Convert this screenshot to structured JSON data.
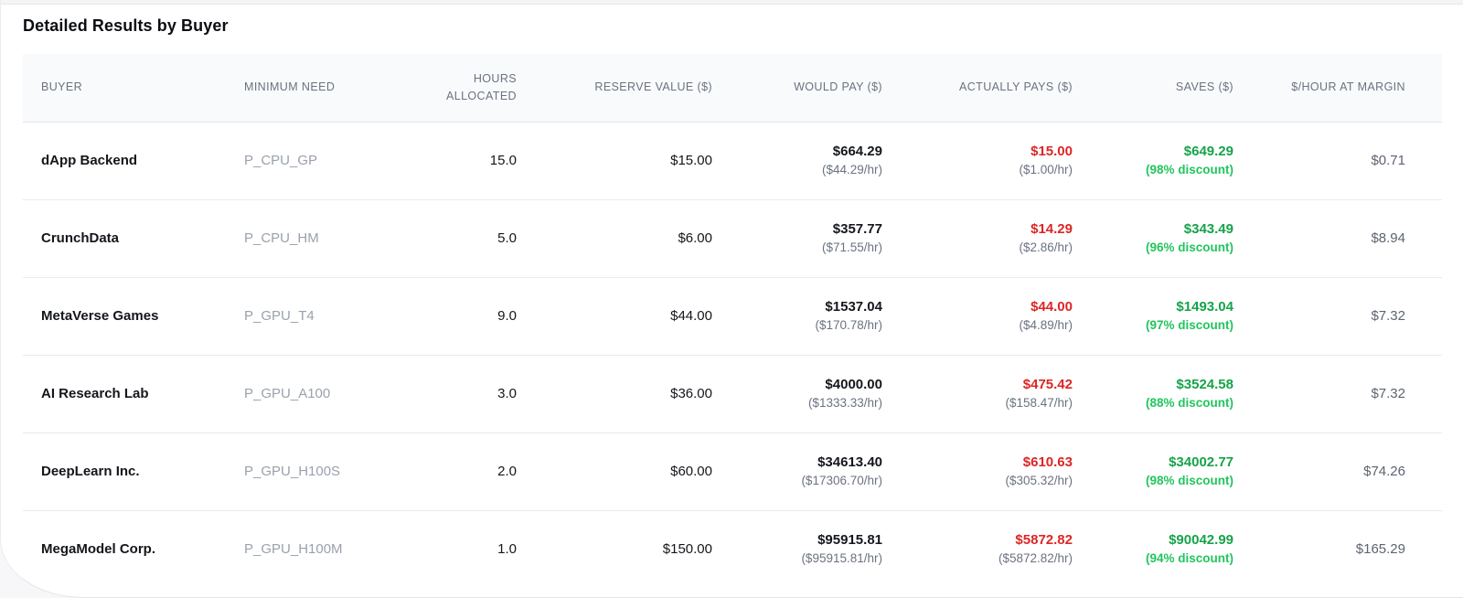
{
  "page": {
    "title": "Detailed Results by Buyer"
  },
  "colors": {
    "red": "#dc2626",
    "green": "#16a34a",
    "green_bright": "#22c55e"
  },
  "table": {
    "columns": [
      {
        "label": "BUYER"
      },
      {
        "label": "MINIMUM NEED"
      },
      {
        "label": "HOURS ALLOCATED"
      },
      {
        "label": "RESERVE VALUE ($)"
      },
      {
        "label": "WOULD PAY ($)"
      },
      {
        "label": "ACTUALLY PAYS ($)"
      },
      {
        "label": "SAVES ($)"
      },
      {
        "label": "$/HOUR AT MARGIN"
      }
    ],
    "rows": [
      {
        "buyer": "dApp Backend",
        "minimum_need": "P_CPU_GP",
        "hours_allocated": "15.0",
        "reserve_value": "$15.00",
        "would_pay": {
          "main": "$664.29",
          "sub": "($44.29/hr)"
        },
        "actually_pays": {
          "main": "$15.00",
          "sub": "($1.00/hr)"
        },
        "saves": {
          "main": "$649.29",
          "sub": "(98% discount)"
        },
        "margin": "$0.71"
      },
      {
        "buyer": "CrunchData",
        "minimum_need": "P_CPU_HM",
        "hours_allocated": "5.0",
        "reserve_value": "$6.00",
        "would_pay": {
          "main": "$357.77",
          "sub": "($71.55/hr)"
        },
        "actually_pays": {
          "main": "$14.29",
          "sub": "($2.86/hr)"
        },
        "saves": {
          "main": "$343.49",
          "sub": "(96% discount)"
        },
        "margin": "$8.94"
      },
      {
        "buyer": "MetaVerse Games",
        "minimum_need": "P_GPU_T4",
        "hours_allocated": "9.0",
        "reserve_value": "$44.00",
        "would_pay": {
          "main": "$1537.04",
          "sub": "($170.78/hr)"
        },
        "actually_pays": {
          "main": "$44.00",
          "sub": "($4.89/hr)"
        },
        "saves": {
          "main": "$1493.04",
          "sub": "(97% discount)"
        },
        "margin": "$7.32"
      },
      {
        "buyer": "AI Research Lab",
        "minimum_need": "P_GPU_A100",
        "hours_allocated": "3.0",
        "reserve_value": "$36.00",
        "would_pay": {
          "main": "$4000.00",
          "sub": "($1333.33/hr)"
        },
        "actually_pays": {
          "main": "$475.42",
          "sub": "($158.47/hr)"
        },
        "saves": {
          "main": "$3524.58",
          "sub": "(88% discount)"
        },
        "margin": "$7.32"
      },
      {
        "buyer": "DeepLearn Inc.",
        "minimum_need": "P_GPU_H100S",
        "hours_allocated": "2.0",
        "reserve_value": "$60.00",
        "would_pay": {
          "main": "$34613.40",
          "sub": "($17306.70/hr)"
        },
        "actually_pays": {
          "main": "$610.63",
          "sub": "($305.32/hr)"
        },
        "saves": {
          "main": "$34002.77",
          "sub": "(98% discount)"
        },
        "margin": "$74.26"
      },
      {
        "buyer": "MegaModel Corp.",
        "minimum_need": "P_GPU_H100M",
        "hours_allocated": "1.0",
        "reserve_value": "$150.00",
        "would_pay": {
          "main": "$95915.81",
          "sub": "($95915.81/hr)"
        },
        "actually_pays": {
          "main": "$5872.82",
          "sub": "($5872.82/hr)"
        },
        "saves": {
          "main": "$90042.99",
          "sub": "(94% discount)"
        },
        "margin": "$165.29"
      }
    ]
  }
}
